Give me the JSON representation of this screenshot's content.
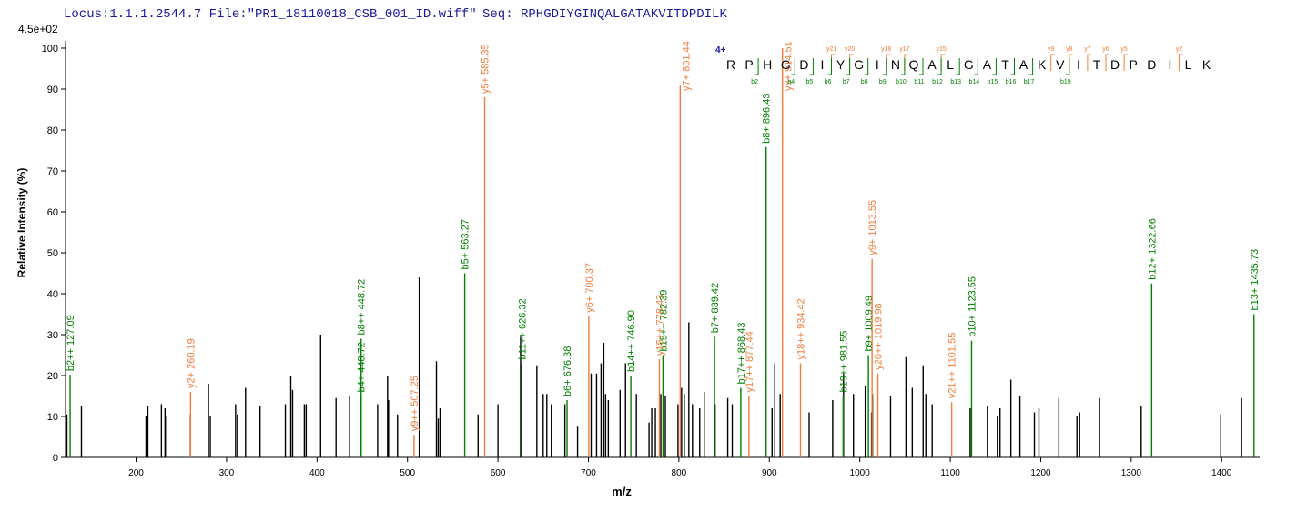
{
  "chart_data": {
    "type": "spectrum",
    "header": "Locus:1.1.1.2544.7 File:\"PR1_18110018_CSB_001_ID.wiff\"",
    "seq_header": "Seq: RPHGDIYGINQALGATAKVITDPDILK",
    "scale_label": "4.5e+02",
    "x_label": "m/z",
    "y_label": "Relative  Intensity (%)",
    "xlim": [
      122,
      1442
    ],
    "xticks": [
      200,
      300,
      400,
      500,
      600,
      700,
      800,
      900,
      1000,
      1100,
      1200,
      1300,
      1400
    ],
    "ylim": [
      0,
      100
    ],
    "yticks": [
      0,
      10,
      20,
      30,
      40,
      50,
      60,
      70,
      80,
      90,
      100
    ],
    "charge": "4+",
    "sequence": [
      "R",
      "P",
      "H",
      "G",
      "D",
      "I",
      "Y",
      "G",
      "I",
      "N",
      "Q",
      "A",
      "L",
      "G",
      "A",
      "T",
      "A",
      "K",
      "V",
      "I",
      "T",
      "D",
      "P",
      "D",
      "I",
      "L",
      "K"
    ],
    "y_fragments": [
      "y21",
      "y20",
      "y18",
      "y17",
      "y15",
      "y9",
      "y8",
      "y7",
      "y6",
      "y5",
      "y2"
    ],
    "b_fragments": [
      "b2",
      "b4",
      "b5",
      "b6",
      "b7",
      "b8",
      "b9",
      "b10",
      "b11",
      "b12",
      "b13",
      "b14",
      "b15",
      "b16",
      "b17",
      "b19"
    ],
    "series": [
      {
        "color": "#000000",
        "x": [
          123.5,
          139.6,
          211,
          213,
          228,
          232,
          234,
          260,
          280,
          282,
          310,
          312,
          321,
          337,
          365,
          371,
          373,
          386,
          388,
          404,
          421,
          436,
          467,
          478,
          479,
          489,
          513,
          532,
          534,
          536,
          578,
          600,
          625,
          643,
          650,
          654,
          659,
          674,
          688,
          703,
          709,
          714,
          717,
          719,
          722,
          735,
          741,
          753,
          767,
          770,
          774,
          780,
          785,
          799,
          803,
          806,
          811,
          815,
          823,
          828,
          840,
          854,
          859,
          903,
          906,
          912,
          944,
          970,
          982,
          993,
          1006,
          1013,
          1014,
          1034,
          1051,
          1058,
          1070,
          1073,
          1080,
          1122,
          1141,
          1152,
          1155,
          1167,
          1177,
          1193,
          1198,
          1220,
          1240,
          1243,
          1265,
          1311,
          1399,
          1422
        ],
        "values": [
          10.5,
          12.5,
          10,
          12.5,
          13,
          12,
          10,
          10.5,
          18,
          10,
          13,
          10.5,
          17,
          12.5,
          13,
          20,
          16.5,
          13,
          13,
          30,
          14.5,
          15,
          13,
          20,
          14,
          10.5,
          44,
          23.5,
          9.5,
          12,
          10.5,
          13,
          29.5,
          22.5,
          15.5,
          15.5,
          13,
          13,
          7.5,
          20.5,
          20.5,
          23,
          28,
          15.5,
          14,
          16.5,
          23,
          15.5,
          8.5,
          12,
          12,
          15.5,
          15,
          13,
          17,
          15.5,
          33,
          13,
          12,
          16,
          13,
          14.5,
          13,
          12,
          23,
          15.5,
          11,
          14,
          20.5,
          15.5,
          17.5,
          11,
          15.5,
          15,
          24.5,
          17,
          22.5,
          15.5,
          13,
          12,
          12.5,
          10,
          12,
          19,
          15,
          11,
          12,
          14.5,
          10,
          11,
          14.5,
          12.5,
          10.5,
          14.5
        ]
      },
      {
        "color": "#008000",
        "x": [
          127.09,
          448.72,
          448.72,
          563.27,
          626.32,
          676.38,
          746.9,
          782.39,
          839.42,
          868.43,
          896.43,
          981.55,
          1009.49,
          1123.55,
          1322.66,
          1435.73
        ],
        "values": [
          20.2,
          15,
          29,
          45,
          23,
          14,
          20,
          25,
          29.5,
          17,
          75.8,
          15,
          25,
          28.5,
          42.5,
          35
        ],
        "peak_labels": [
          "b2++ 127.09",
          "b4+ 448.72",
          "b8++ 448.72",
          "b5+ 563.27",
          "b11++ 626.32",
          "b6+ 676.38",
          "b14++ 746.90",
          "b15++ 782.39",
          "b7+ 839.42",
          "b17++ 868.43",
          "b8+ 896.43",
          "b19++ 981.55",
          "b9+ 1009.49",
          "b10+ 1123.55",
          "b12+ 1322.66",
          "b13+ 1435.73"
        ]
      },
      {
        "color": "#f07d3c",
        "x": [
          260.19,
          507.25,
          585.35,
          700.37,
          778.43,
          801.44,
          877.44,
          914.51,
          934.42,
          1013.55,
          1019.98,
          1101.55
        ],
        "values": [
          16,
          5.5,
          88,
          34.5,
          24,
          91,
          15,
          100,
          23,
          48.5,
          20.5,
          13.5
        ],
        "peak_labels": [
          "y2+ 260.19",
          "y9++ 507.25",
          "y5+ 585.35",
          "y6+ 700.37",
          "y15++ 778.43",
          "y7+ 801.44",
          "y17++ 877.44",
          "y8+ 914.51",
          "y18++ 934.42",
          "y9+ 1013.55",
          "y20++ 1019.98",
          "y21++ 1101.55"
        ]
      }
    ]
  }
}
